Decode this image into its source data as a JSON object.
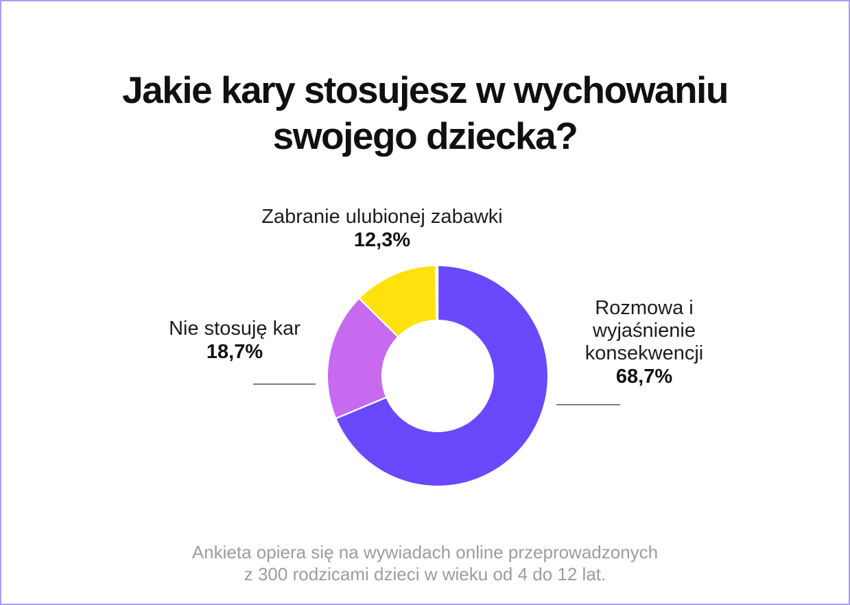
{
  "page": {
    "title_line1": "Jakie kary stosujesz w wychowaniu",
    "title_line2": "swojego dziecka?",
    "footnote_line1": "Ankieta opiera się na wywiadach online przeprowadzonych",
    "footnote_line2": "z 300 rodzicami dzieci w wieku od 4 do 12 lat.",
    "border_color": "#ab9bf7",
    "background_color": "#ffffff"
  },
  "chart_data": {
    "type": "pie",
    "title": "Jakie kary stosujesz w wychowaniu swojego dziecka?",
    "donut": true,
    "inner_radius_ratio": 0.51,
    "start_angle_deg": 0,
    "direction": "clockwise",
    "slice_gap_color": "#ffffff",
    "slices": [
      {
        "label": "Rozmowa i wyjaśnienie konsekwencji",
        "value_pct": 68.7,
        "display_value": "68,7%",
        "color": "#6b48fb"
      },
      {
        "label": "Nie stosuję kar",
        "value_pct": 18.7,
        "display_value": "18,7%",
        "color": "#c76aef"
      },
      {
        "label": "Zabranie ulubionej zabawki",
        "value_pct": 12.3,
        "display_value": "12,3%",
        "color": "#ffe20d"
      },
      {
        "label": "",
        "value_pct": 0.3,
        "display_value": "",
        "color": "#d9d9d9"
      }
    ],
    "legend_position": "labels-around-chart",
    "source_note": "Ankieta opiera się na wywiadach online przeprowadzonych z 300 rodzicami dzieci w wieku od 4 do 12 lat."
  }
}
